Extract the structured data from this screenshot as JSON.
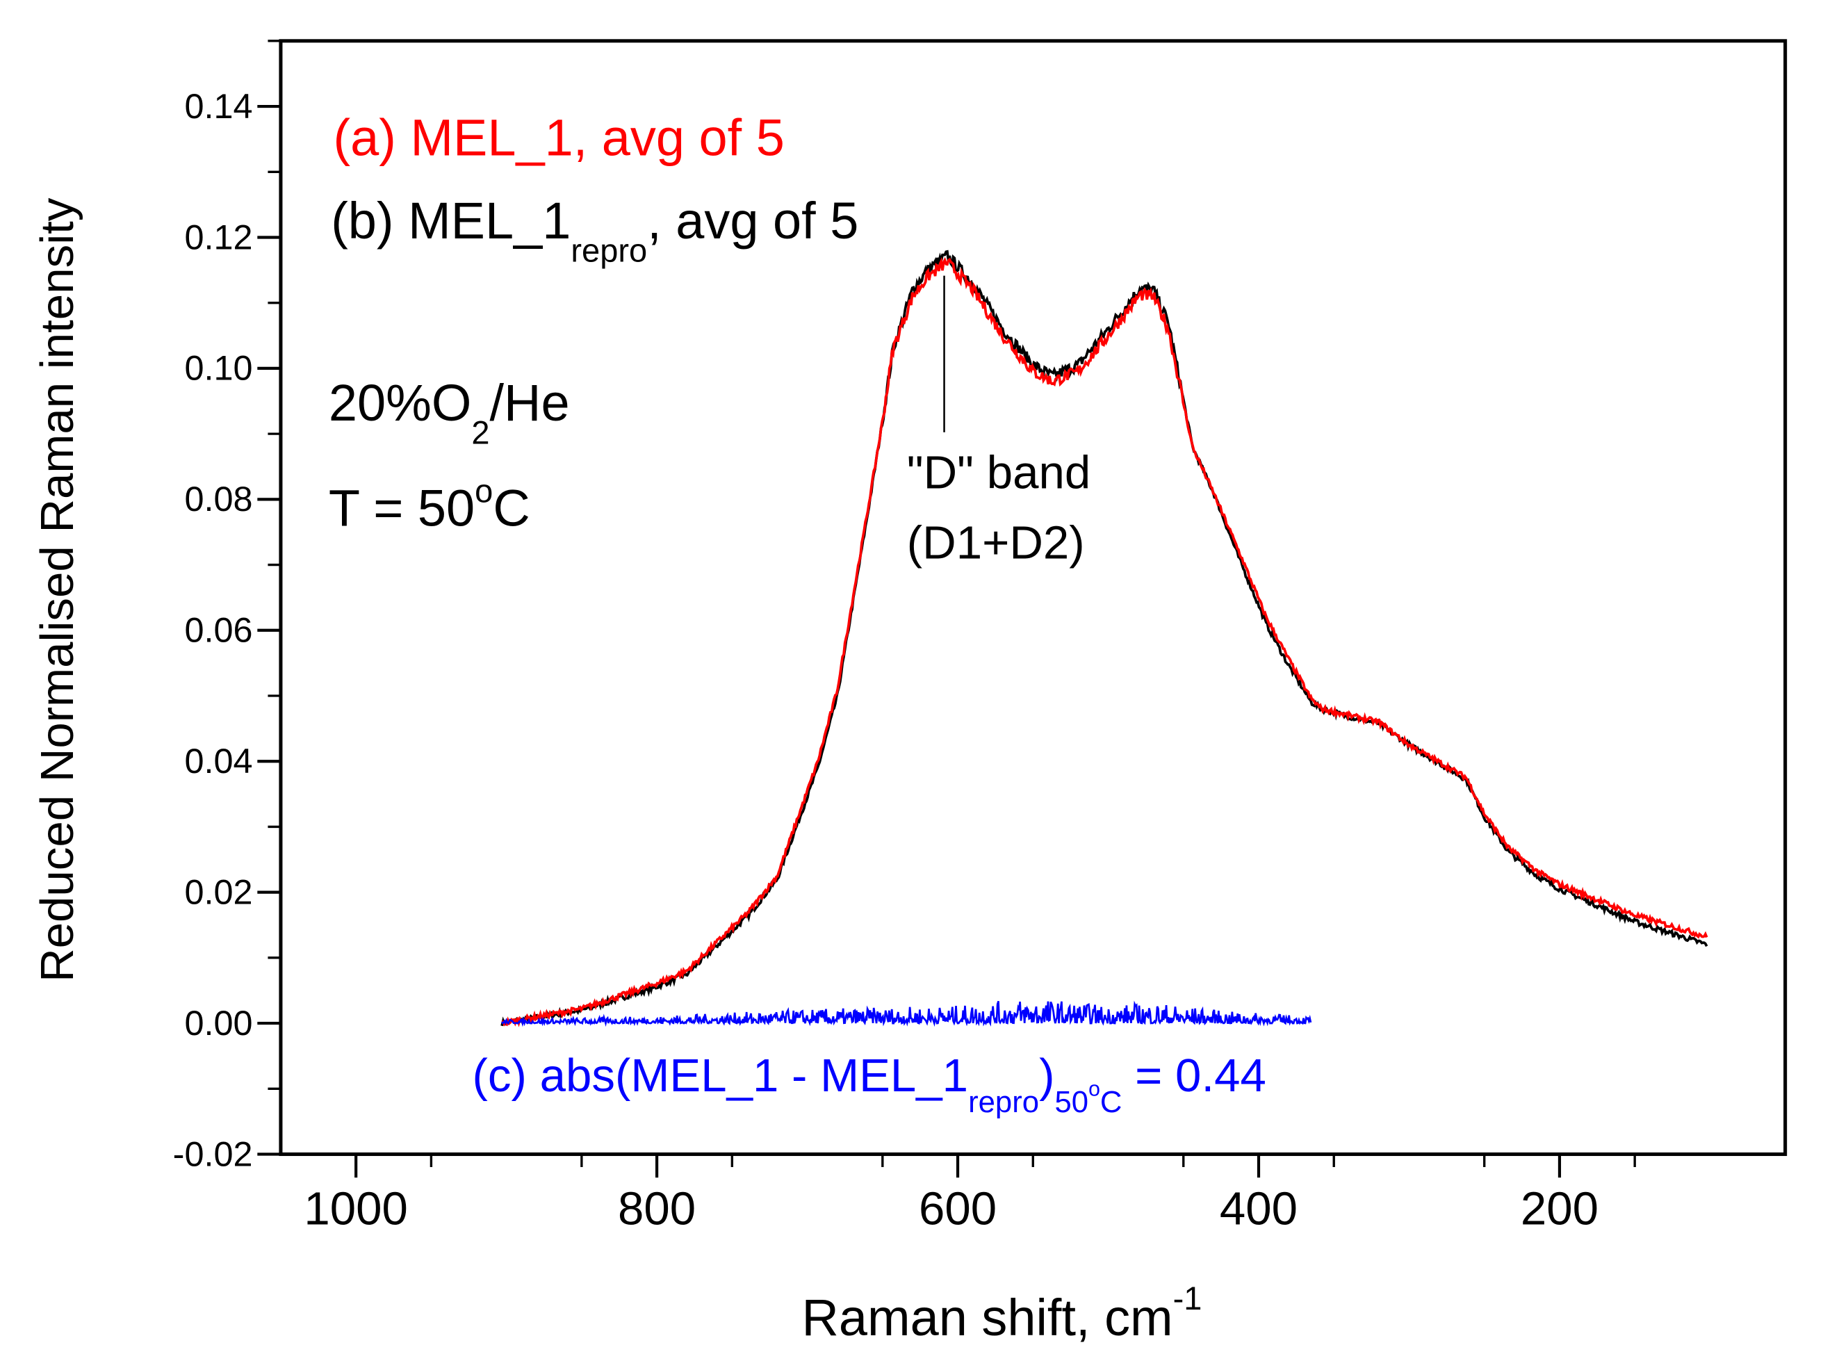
{
  "chart_data": {
    "type": "line",
    "xlabel": "Raman shift, cm",
    "xlabel_sup": "-1",
    "ylabel": "Reduced Normalised Raman intensity",
    "xlim": [
      1050,
      50
    ],
    "ylim": [
      -0.02,
      0.15
    ],
    "x_ticks": [
      1000,
      800,
      600,
      400,
      200
    ],
    "x_tick_labels": [
      "1000",
      "800",
      "600",
      "400",
      "200"
    ],
    "y_ticks": [
      -0.02,
      0.0,
      0.02,
      0.04,
      0.06,
      0.08,
      0.1,
      0.12,
      0.14
    ],
    "y_tick_labels": [
      "-0.02",
      "0.00",
      "0.02",
      "0.04",
      "0.06",
      "0.08",
      "0.10",
      "0.12",
      "0.14"
    ],
    "grid": false,
    "series": [
      {
        "name": "(b) MEL_1repro, avg of 5",
        "color": "#000000",
        "x": [
          903,
          850,
          801,
          780,
          739,
          720,
          693,
          680,
          659,
          650,
          643,
          630,
          620,
          607,
          590,
          570,
          550,
          537,
          520,
          500,
          479,
          470,
          460,
          444,
          430,
          413,
          395,
          381,
          365,
          358,
          340,
          320,
          300,
          262,
          250,
          234,
          215,
          200,
          150,
          102
        ],
        "y": [
          0.0,
          0.002,
          0.0055,
          0.0075,
          0.0165,
          0.022,
          0.039,
          0.05,
          0.079,
          0.092,
          0.103,
          0.112,
          0.115,
          0.1172,
          0.113,
          0.106,
          0.1005,
          0.0988,
          0.1005,
          0.106,
          0.1122,
          0.112,
          0.107,
          0.088,
          0.081,
          0.071,
          0.061,
          0.055,
          0.049,
          0.048,
          0.0468,
          0.0458,
          0.0425,
          0.0372,
          0.0315,
          0.0262,
          0.0225,
          0.0205,
          0.0155,
          0.012
        ]
      },
      {
        "name": "(a) MEL_1, avg of 5",
        "color": "#ff0000",
        "x": [
          903,
          850,
          801,
          780,
          739,
          720,
          693,
          680,
          659,
          650,
          643,
          630,
          620,
          607,
          590,
          570,
          550,
          537,
          520,
          500,
          479,
          470,
          460,
          444,
          430,
          413,
          395,
          381,
          365,
          358,
          340,
          320,
          300,
          262,
          250,
          234,
          215,
          200,
          150,
          102
        ],
        "y": [
          0.0,
          0.0022,
          0.006,
          0.008,
          0.017,
          0.0225,
          0.04,
          0.051,
          0.0795,
          0.092,
          0.103,
          0.111,
          0.114,
          0.1162,
          0.112,
          0.105,
          0.0995,
          0.098,
          0.0995,
          0.105,
          0.1112,
          0.111,
          0.106,
          0.088,
          0.081,
          0.072,
          0.062,
          0.056,
          0.0495,
          0.048,
          0.047,
          0.046,
          0.0425,
          0.0375,
          0.032,
          0.0268,
          0.0232,
          0.0212,
          0.0165,
          0.0132
        ]
      },
      {
        "name": "(c) abs(MEL_1 - MEL_1repro)50°C = 0.44",
        "color": "#0000ff",
        "x": [
          903,
          800,
          700,
          600,
          550,
          500,
          470,
          420,
          365
        ],
        "y": [
          0.0003,
          0.0006,
          0.0012,
          0.0015,
          0.0022,
          0.0015,
          0.0018,
          0.001,
          0.0006
        ]
      }
    ],
    "annotations": {
      "legend_a": "(a) MEL_1, avg of 5",
      "legend_b_main": "(b) MEL_1",
      "legend_b_sub": "repro",
      "legend_b_tail": ", avg of 5",
      "gas_main": "20%O",
      "gas_sub": "2",
      "gas_tail": "/He",
      "temp_main": "T = 50",
      "temp_sup": "o",
      "temp_tail": "C",
      "band_line1": "\"D\" band",
      "band_line2": "(D1+D2)",
      "diff_main": "(c) abs(MEL_1 - MEL_1",
      "diff_sub1": "repro",
      "diff_mid": ")",
      "diff_sub2": "50",
      "diff_sub2_sup": "o",
      "diff_sub2_tail": "C",
      "diff_tail": " = 0.44"
    }
  }
}
